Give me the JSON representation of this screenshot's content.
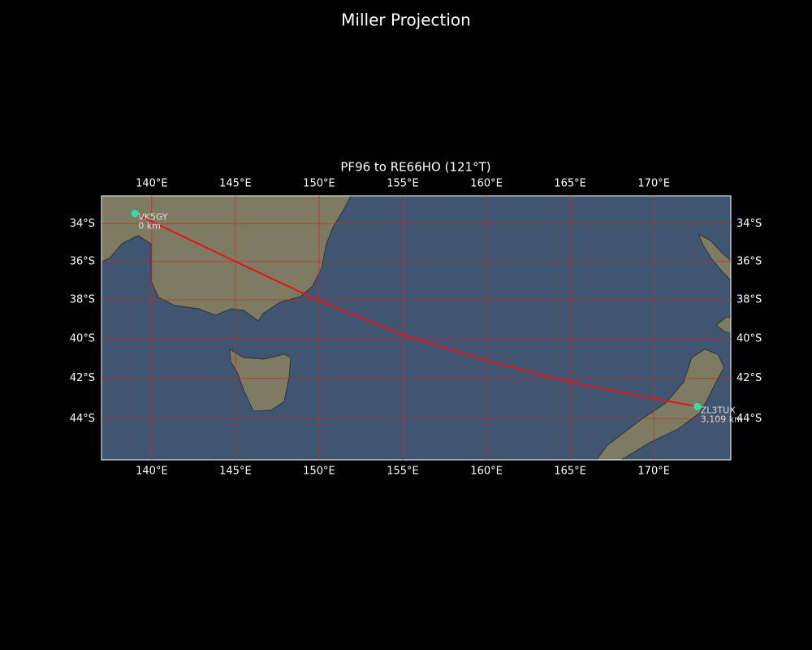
{
  "chart_data": {
    "type": "map",
    "projection": "miller",
    "title": "Miller Projection",
    "subtitle": "PF96 to RE66HO (121°T)",
    "xlim": [
      137,
      174.6
    ],
    "ylim": [
      -46,
      -32.5
    ],
    "xticks": [
      {
        "value": 140,
        "label": "140°E"
      },
      {
        "value": 145,
        "label": "145°E"
      },
      {
        "value": 150,
        "label": "150°E"
      },
      {
        "value": 155,
        "label": "155°E"
      },
      {
        "value": 160,
        "label": "160°E"
      },
      {
        "value": 165,
        "label": "165°E"
      },
      {
        "value": 170,
        "label": "170°E"
      }
    ],
    "yticks": [
      {
        "value": -34,
        "label": "34°S"
      },
      {
        "value": -36,
        "label": "36°S"
      },
      {
        "value": -38,
        "label": "38°S"
      },
      {
        "value": -40,
        "label": "40°S"
      },
      {
        "value": -42,
        "label": "42°S"
      },
      {
        "value": -44,
        "label": "44°S"
      }
    ],
    "grid": true,
    "grid_color": "#c8282a",
    "route": {
      "color": "#e8141a",
      "lon": [
        139,
        145,
        150,
        155,
        160,
        165,
        170,
        172.6
      ],
      "lat": [
        -33.45,
        -36.0,
        -38.05,
        -39.8,
        -41.1,
        -42.2,
        -43.0,
        -43.4
      ]
    },
    "stations": {
      "color": "#2fe0a0",
      "names": [
        "VK5GY",
        "ZL3TUX"
      ],
      "distances": [
        "0 km",
        "3,109 km"
      ],
      "lon": [
        139,
        172.6
      ],
      "lat": [
        -33.45,
        -43.4
      ]
    }
  }
}
